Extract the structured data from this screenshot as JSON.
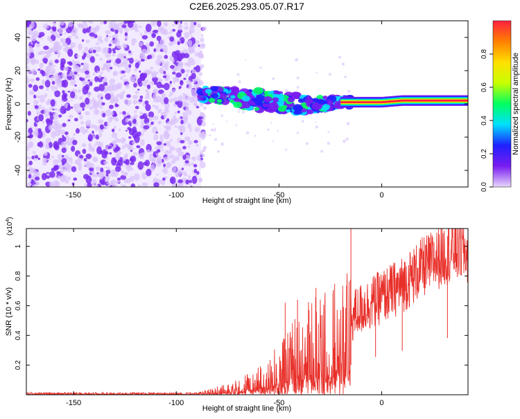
{
  "title": "C2E6.2025.293.05.07.R17",
  "colors": {
    "axis": "#000000",
    "snr_line": "#e8302a",
    "noise_purple": "#7a2cf0",
    "noise_light": "#d9c2fb"
  },
  "chart_data": [
    {
      "type": "heatmap",
      "name": "spectrogram",
      "xlabel": "Height of straight line (km)",
      "ylabel": "Frequency (Hz)",
      "xlim": [
        -173,
        42
      ],
      "ylim": [
        -50,
        50
      ],
      "xticks": [
        -150,
        -100,
        -50,
        0
      ],
      "yticks": [
        -40,
        -20,
        0,
        20,
        40
      ],
      "grid": false,
      "colorbar": {
        "label": "Normalized spectral amplitude",
        "range": [
          0,
          1
        ],
        "ticks": [
          "0.0",
          "0.2",
          "0.4",
          "0.6",
          "0.8"
        ],
        "tick_values": [
          0.0,
          0.2,
          0.4,
          0.6,
          0.8
        ],
        "colormap": [
          "#e8d8fb",
          "#7a1cf0",
          "#2020ff",
          "#00e0ff",
          "#00ff60",
          "#c8ff00",
          "#ffe000",
          "#ff8000",
          "#ff2040"
        ]
      },
      "noise_region": {
        "x_range": [
          -173,
          -88
        ],
        "f_range": [
          -50,
          50
        ]
      },
      "signal_track": [
        {
          "x": -88,
          "f": 6,
          "halfwidth": 4
        },
        {
          "x": -75,
          "f": 5,
          "halfwidth": 4
        },
        {
          "x": -60,
          "f": 2,
          "halfwidth": 6
        },
        {
          "x": -45,
          "f": 1,
          "halfwidth": 6
        },
        {
          "x": -35,
          "f": -1,
          "halfwidth": 5
        },
        {
          "x": -20,
          "f": 1,
          "halfwidth": 3
        },
        {
          "x": 0,
          "f": 1,
          "halfwidth": 2
        },
        {
          "x": 10,
          "f": 2,
          "halfwidth": 2
        },
        {
          "x": 42,
          "f": 2,
          "halfwidth": 2
        }
      ]
    },
    {
      "type": "line",
      "name": "snr",
      "xlabel": "Height of straight line (km)",
      "ylabel": "SNR (10 * v/v)",
      "y_multiplier": "(x10",
      "y_multiplier_exp": "4",
      "y_multiplier_close": ")",
      "xlim": [
        -173,
        42
      ],
      "ylim": [
        0,
        1.12
      ],
      "xticks": [
        -150,
        -100,
        -50,
        0
      ],
      "yticks": [
        0.2,
        0.4,
        0.6,
        0.8,
        1.0
      ],
      "grid": false,
      "series": [
        {
          "name": "SNR",
          "x": [
            -173,
            -150,
            -120,
            -95,
            -88,
            -80,
            -70,
            -60,
            -55,
            -50,
            -45,
            -40,
            -35,
            -30,
            -25,
            -20,
            -18,
            -15,
            -13,
            -10,
            -5,
            0,
            5,
            10,
            15,
            20,
            25,
            30,
            35,
            40,
            42
          ],
          "y": [
            0.01,
            0.01,
            0.01,
            0.01,
            0.01,
            0.03,
            0.05,
            0.09,
            0.13,
            0.16,
            0.22,
            0.28,
            0.3,
            0.33,
            0.35,
            0.37,
            0.39,
            0.5,
            0.55,
            0.58,
            0.62,
            0.66,
            0.7,
            0.74,
            0.8,
            0.86,
            0.9,
            0.94,
            0.98,
            0.97,
            0.95
          ],
          "spikes": [
            {
              "x": -47,
              "y": 0.62
            },
            {
              "x": -41,
              "y": 0.64
            },
            {
              "x": -32,
              "y": 0.72
            },
            {
              "x": -15,
              "y": 1.12
            },
            {
              "x": -3,
              "y": 0.79
            },
            {
              "x": 10,
              "y": 0.85
            },
            {
              "x": 32,
              "y": 1.07
            }
          ]
        }
      ]
    }
  ]
}
